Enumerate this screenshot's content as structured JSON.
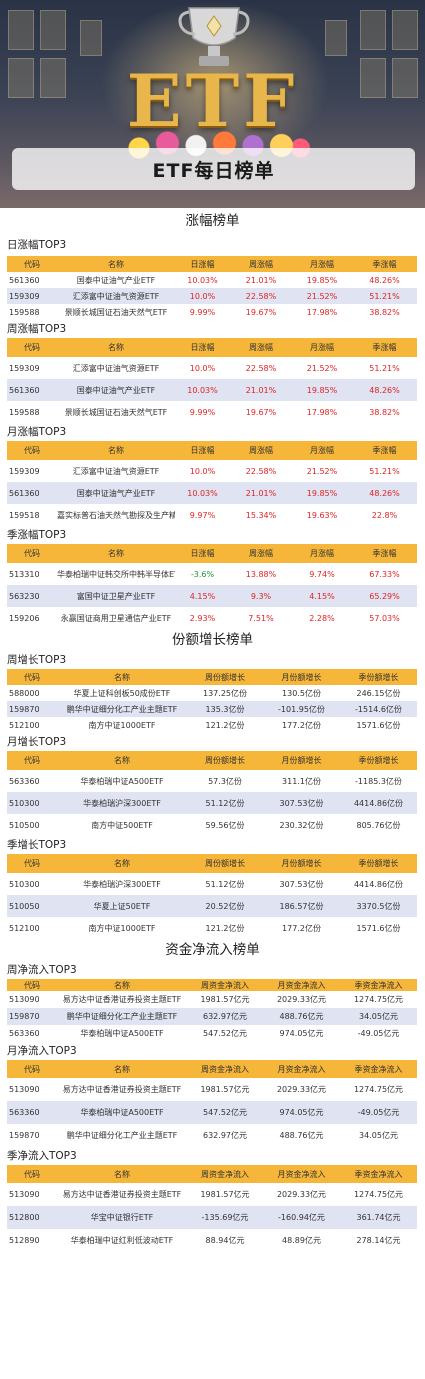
{
  "banner": {
    "title": "ETF每日榜单",
    "logo_text": "ETF"
  },
  "colors": {
    "header": "#f5b63a",
    "alt_row": "#dfe3f2",
    "up": "#e02424",
    "down": "#1a9a2a"
  },
  "sections": [
    {
      "title": "涨幅榜单",
      "groups": [
        {
          "title": "日涨幅TOP3",
          "headers": [
            "代码",
            "名称",
            "日涨幅",
            "周涨幅",
            "月涨幅",
            "季涨幅"
          ],
          "rows": [
            [
              "561360",
              "国泰中证油气产业ETF",
              "10.03%",
              "21.01%",
              "19.85%",
              "48.26%"
            ],
            [
              "159309",
              "汇添富中证油气资源ETF",
              "10.0%",
              "22.58%",
              "21.52%",
              "51.21%"
            ],
            [
              "159588",
              "景顺长城国证石油天然气ETF",
              "9.99%",
              "19.67%",
              "17.98%",
              "38.82%"
            ]
          ]
        },
        {
          "title": "周涨幅TOP3",
          "headers": [
            "代码",
            "名称",
            "日涨幅",
            "周涨幅",
            "月涨幅",
            "季涨幅"
          ],
          "rows": [
            [
              "159309",
              "汇添富中证油气资源ETF",
              "10.0%",
              "22.58%",
              "21.52%",
              "51.21%"
            ],
            [
              "561360",
              "国泰中证油气产业ETF",
              "10.03%",
              "21.01%",
              "19.85%",
              "48.26%"
            ],
            [
              "159588",
              "景顺长城国证石油天然气ETF",
              "9.99%",
              "19.67%",
              "17.98%",
              "38.82%"
            ]
          ]
        },
        {
          "title": "月涨幅TOP3",
          "headers": [
            "代码",
            "名称",
            "日涨幅",
            "周涨幅",
            "月涨幅",
            "季涨幅"
          ],
          "rows": [
            [
              "159309",
              "汇添富中证油气资源ETF",
              "10.0%",
              "22.58%",
              "21.52%",
              "51.21%"
            ],
            [
              "561360",
              "国泰中证油气产业ETF",
              "10.03%",
              "21.01%",
              "19.85%",
              "48.26%"
            ],
            [
              "159518",
              "嘉实标普石油天然气勘探及生产精选行业ETF",
              "9.97%",
              "15.34%",
              "19.63%",
              "22.8%"
            ]
          ]
        },
        {
          "title": "季涨幅TOP3",
          "headers": [
            "代码",
            "名称",
            "日涨幅",
            "周涨幅",
            "月涨幅",
            "季涨幅"
          ],
          "rows": [
            [
              "513310",
              "华泰柏瑞中证韩交所中韩半导体ETF",
              "-3.6%",
              "13.88%",
              "9.74%",
              "67.33%"
            ],
            [
              "563230",
              "富国中证卫星产业ETF",
              "4.15%",
              "9.3%",
              "4.15%",
              "65.29%"
            ],
            [
              "159206",
              "永赢国证商用卫星通信产业ETF",
              "2.93%",
              "7.51%",
              "2.28%",
              "57.03%"
            ]
          ]
        }
      ]
    },
    {
      "title": "份额增长榜单",
      "groups": [
        {
          "title": "周增长TOP3",
          "headers": [
            "代码",
            "名称",
            "周份额增长",
            "月份额增长",
            "季份额增长"
          ],
          "rows": [
            [
              "588000",
              "华夏上证科创板50成份ETF",
              "137.25亿份",
              "130.5亿份",
              "246.15亿份"
            ],
            [
              "159870",
              "鹏华中证细分化工产业主题ETF",
              "135.3亿份",
              "-101.95亿份",
              "-1514.6亿份"
            ],
            [
              "512100",
              "南方中证1000ETF",
              "121.2亿份",
              "177.2亿份",
              "1571.6亿份"
            ]
          ]
        },
        {
          "title": "月增长TOP3",
          "headers": [
            "代码",
            "名称",
            "周份额增长",
            "月份额增长",
            "季份额增长"
          ],
          "rows": [
            [
              "563360",
              "华泰柏瑞中证A500ETF",
              "57.3亿份",
              "311.1亿份",
              "-1185.3亿份"
            ],
            [
              "510300",
              "华泰柏瑞沪深300ETF",
              "51.12亿份",
              "307.53亿份",
              "4414.86亿份"
            ],
            [
              "510500",
              "南方中证500ETF",
              "59.56亿份",
              "230.32亿份",
              "805.76亿份"
            ]
          ]
        },
        {
          "title": "季增长TOP3",
          "headers": [
            "代码",
            "名称",
            "周份额增长",
            "月份额增长",
            "季份额增长"
          ],
          "rows": [
            [
              "510300",
              "华泰柏瑞沪深300ETF",
              "51.12亿份",
              "307.53亿份",
              "4414.86亿份"
            ],
            [
              "510050",
              "华夏上证50ETF",
              "20.52亿份",
              "186.57亿份",
              "3370.5亿份"
            ],
            [
              "512100",
              "南方中证1000ETF",
              "121.2亿份",
              "177.2亿份",
              "1571.6亿份"
            ]
          ]
        }
      ]
    },
    {
      "title": "资金净流入榜单",
      "groups": [
        {
          "title": "周净流入TOP3",
          "headers": [
            "代码",
            "名称",
            "周资金净流入",
            "月资金净流入",
            "季资金净流入"
          ],
          "rows": [
            [
              "513090",
              "易方达中证香港证券投资主题ETF",
              "1981.57亿元",
              "2029.33亿元",
              "1274.75亿元"
            ],
            [
              "159870",
              "鹏华中证细分化工产业主题ETF",
              "632.97亿元",
              "488.76亿元",
              "34.05亿元"
            ],
            [
              "563360",
              "华泰柏瑞中证A500ETF",
              "547.52亿元",
              "974.05亿元",
              "-49.05亿元"
            ]
          ]
        },
        {
          "title": "月净流入TOP3",
          "headers": [
            "代码",
            "名称",
            "周资金净流入",
            "月资金净流入",
            "季资金净流入"
          ],
          "rows": [
            [
              "513090",
              "易方达中证香港证券投资主题ETF",
              "1981.57亿元",
              "2029.33亿元",
              "1274.75亿元"
            ],
            [
              "563360",
              "华泰柏瑞中证A500ETF",
              "547.52亿元",
              "974.05亿元",
              "-49.05亿元"
            ],
            [
              "159870",
              "鹏华中证细分化工产业主题ETF",
              "632.97亿元",
              "488.76亿元",
              "34.05亿元"
            ]
          ]
        },
        {
          "title": "季净流入TOP3",
          "headers": [
            "代码",
            "名称",
            "周资金净流入",
            "月资金净流入",
            "季资金净流入"
          ],
          "rows": [
            [
              "513090",
              "易方达中证香港证券投资主题ETF",
              "1981.57亿元",
              "2029.33亿元",
              "1274.75亿元"
            ],
            [
              "512800",
              "华宝中证银行ETF",
              "-135.69亿元",
              "-160.94亿元",
              "361.74亿元"
            ],
            [
              "512890",
              "华泰柏瑞中证红利低波动ETF",
              "88.94亿元",
              "48.89亿元",
              "278.14亿元"
            ]
          ]
        }
      ]
    }
  ]
}
